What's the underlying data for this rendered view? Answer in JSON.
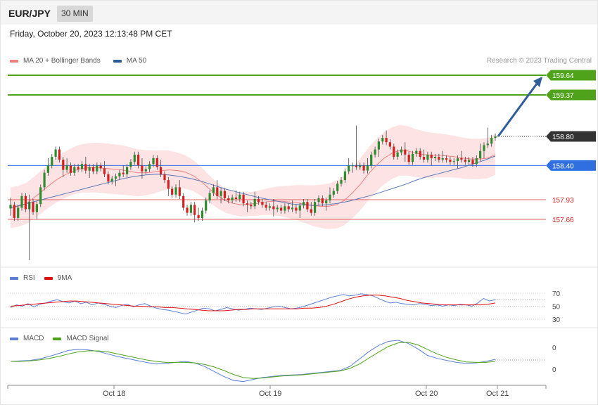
{
  "header": {
    "pair": "EUR/JPY",
    "timeframe": "30 MIN"
  },
  "date_line": "Friday, October 20, 2023 12:13:48 PM CET",
  "credit": "Research © 2023 Trading Central",
  "legend_main": [
    {
      "label": "MA 20 + Bollinger Bands",
      "color": "#f08080"
    },
    {
      "label": "MA 50",
      "color": "#2f5d9a"
    }
  ],
  "legend_rsi": [
    {
      "label": "RSI",
      "color": "#5b7fd6"
    },
    {
      "label": "9MA",
      "color": "#e01010"
    }
  ],
  "legend_macd": [
    {
      "label": "MACD",
      "color": "#5b7fd6"
    },
    {
      "label": "MACD Signal",
      "color": "#4fa31a"
    }
  ],
  "x_ticks": [
    "Oct 18",
    "Oct 19",
    "Oct 20",
    "Oct 21"
  ],
  "colors": {
    "up": "#2e8b2e",
    "down": "#d42020",
    "green_level": "#4fa31a",
    "blue_level": "#2f6fe0",
    "red_level": "#e06060",
    "current": "#333333"
  },
  "chart_data": [
    {
      "type": "line",
      "name": "price",
      "ylim": [
        156.9,
        160.0
      ],
      "levels": [
        {
          "value": 159.64,
          "label": "159.64",
          "kind": "target"
        },
        {
          "value": 159.37,
          "label": "159.37",
          "kind": "target"
        },
        {
          "value": 158.8,
          "label": "158.80",
          "kind": "current"
        },
        {
          "value": 158.4,
          "label": "158.40",
          "kind": "pivot"
        },
        {
          "value": 157.93,
          "label": "157.93",
          "kind": "support"
        },
        {
          "value": 157.66,
          "label": "157.66",
          "kind": "support"
        }
      ],
      "series": [
        {
          "name": "MA 20 + Bollinger Bands",
          "note": "middle band, sampled close path"
        },
        {
          "name": "MA 50"
        }
      ],
      "close": [
        157.86,
        157.68,
        157.82,
        157.98,
        157.8,
        157.9,
        157.76,
        157.87,
        158.1,
        158.3,
        158.4,
        158.52,
        158.62,
        158.48,
        158.34,
        158.4,
        158.3,
        158.38,
        158.35,
        158.42,
        158.33,
        158.38,
        158.32,
        158.4,
        158.36,
        158.28,
        158.18,
        158.22,
        158.25,
        158.3,
        158.28,
        158.38,
        158.45,
        158.55,
        158.4,
        158.32,
        158.35,
        158.42,
        158.5,
        158.38,
        158.28,
        158.2,
        158.08,
        158.0,
        158.1,
        157.98,
        157.82,
        157.75,
        157.86,
        157.72,
        157.68,
        157.78,
        157.92,
        158.02,
        158.1,
        157.98,
        158.05,
        157.95,
        157.92,
        157.96,
        157.94,
        158.0,
        157.88,
        157.86,
        157.84,
        157.94,
        157.9,
        157.86,
        157.82,
        157.84,
        157.8,
        157.82,
        157.78,
        157.84,
        157.8,
        157.82,
        157.78,
        157.85,
        157.9,
        157.8,
        157.75,
        157.9,
        157.95,
        157.88,
        157.92,
        158.0,
        158.05,
        158.15,
        158.2,
        158.32,
        158.4,
        158.4,
        158.38,
        158.4,
        158.33,
        158.4,
        158.55,
        158.62,
        158.73,
        158.78,
        158.72,
        158.66,
        158.52,
        158.58,
        158.62,
        158.55,
        158.45,
        158.56,
        158.6,
        158.52,
        158.48,
        158.55,
        158.5,
        158.52,
        158.48,
        158.5,
        158.48,
        158.45,
        158.46,
        158.5,
        158.48,
        158.45,
        158.48,
        158.42,
        158.5,
        158.6,
        158.68,
        158.7,
        158.78,
        158.8
      ],
      "ma20": [
        157.82,
        157.84,
        157.88,
        157.96,
        158.05,
        158.14,
        158.22,
        158.28,
        158.33,
        158.36,
        158.37,
        158.37,
        158.36,
        158.35,
        158.34,
        158.32,
        158.3,
        158.3,
        158.31,
        158.33,
        158.34,
        158.33,
        158.31,
        158.26,
        158.18,
        158.08,
        157.99,
        157.92,
        157.88,
        157.86,
        157.87,
        157.88,
        157.9,
        157.91,
        157.91,
        157.9,
        157.89,
        157.87,
        157.85,
        157.84,
        157.84,
        157.86,
        157.92,
        158.02,
        158.14,
        158.28,
        158.4,
        158.5,
        158.57,
        158.61,
        158.6,
        158.57,
        158.55,
        158.54,
        158.54,
        158.53,
        158.52,
        158.5,
        158.49,
        158.49,
        158.5,
        158.55
      ],
      "ma50": [
        157.82,
        157.86,
        157.9,
        157.94,
        157.98,
        158.02,
        158.06,
        158.1,
        158.14,
        158.18,
        158.22,
        158.25,
        158.27,
        158.28,
        158.27,
        158.25,
        158.22,
        158.18,
        158.13,
        158.08,
        158.04,
        158.0,
        157.96,
        157.93,
        157.9,
        157.87,
        157.86,
        157.85,
        157.86,
        157.88,
        157.91,
        157.95,
        157.99,
        158.04,
        158.09,
        158.14,
        158.2,
        158.25,
        158.29,
        158.33,
        158.37,
        158.42,
        158.47,
        158.53
      ]
    },
    {
      "type": "line",
      "name": "RSI",
      "ylim": [
        25,
        75
      ],
      "yticks": [
        70,
        50,
        30
      ],
      "series": [
        {
          "name": "RSI",
          "values": [
            48,
            52,
            50,
            54,
            49,
            53,
            55,
            58,
            60,
            57,
            55,
            58,
            54,
            56,
            52,
            55,
            53,
            50,
            48,
            51,
            53,
            49,
            52,
            54,
            50,
            47,
            45,
            44,
            42,
            40,
            38,
            41,
            44,
            47,
            46,
            43,
            45,
            48,
            46,
            44,
            45,
            47,
            46,
            45,
            47,
            49,
            50,
            48,
            46,
            47,
            49,
            52,
            55,
            58,
            61,
            64,
            66,
            68,
            66,
            67,
            69,
            68,
            66,
            62,
            58,
            55,
            56,
            54,
            53,
            52,
            54,
            53,
            51,
            52,
            50,
            52,
            51,
            53,
            52,
            50,
            55,
            62,
            58,
            60
          ]
        },
        {
          "name": "9MA",
          "values": [
            50,
            51,
            52,
            53,
            54,
            55,
            56,
            57,
            58,
            58,
            57,
            56,
            55,
            54,
            53,
            52,
            51,
            50,
            50,
            49,
            49,
            48,
            48,
            47,
            46,
            45,
            44,
            43,
            43,
            43,
            44,
            45,
            45,
            46,
            46,
            46,
            46,
            46,
            46,
            46,
            47,
            47,
            48,
            50,
            53,
            57,
            61,
            64,
            66,
            67,
            67,
            66,
            64,
            62,
            59,
            57,
            55,
            54,
            53,
            52,
            52,
            52,
            52,
            52,
            52,
            53,
            55
          ]
        }
      ]
    },
    {
      "type": "line",
      "name": "MACD",
      "yticks": [
        "0",
        "0"
      ],
      "series": [
        {
          "name": "MACD",
          "values": [
            0.0,
            0.01,
            0.02,
            0.05,
            0.1,
            0.16,
            0.22,
            0.24,
            0.23,
            0.2,
            0.15,
            0.1,
            0.06,
            0.02,
            -0.02,
            -0.05,
            -0.04,
            -0.02,
            0.0,
            -0.03,
            -0.1,
            -0.2,
            -0.3,
            -0.38,
            -0.4,
            -0.36,
            -0.32,
            -0.3,
            -0.28,
            -0.27,
            -0.26,
            -0.24,
            -0.22,
            -0.2,
            -0.18,
            -0.1,
            0.05,
            0.2,
            0.32,
            0.4,
            0.42,
            0.36,
            0.25,
            0.12,
            0.06,
            0.02,
            -0.02,
            -0.04,
            -0.03,
            0.0,
            0.04
          ]
        },
        {
          "name": "MACD Signal",
          "values": [
            0.0,
            0.0,
            0.01,
            0.03,
            0.06,
            0.1,
            0.15,
            0.19,
            0.21,
            0.21,
            0.19,
            0.15,
            0.11,
            0.07,
            0.03,
            0.0,
            -0.02,
            -0.02,
            -0.02,
            -0.03,
            -0.06,
            -0.11,
            -0.18,
            -0.26,
            -0.32,
            -0.34,
            -0.33,
            -0.31,
            -0.29,
            -0.28,
            -0.27,
            -0.25,
            -0.23,
            -0.21,
            -0.19,
            -0.14,
            -0.05,
            0.07,
            0.19,
            0.3,
            0.37,
            0.38,
            0.33,
            0.24,
            0.15,
            0.08,
            0.03,
            -0.01,
            -0.02,
            -0.02,
            0.0
          ]
        }
      ]
    }
  ]
}
